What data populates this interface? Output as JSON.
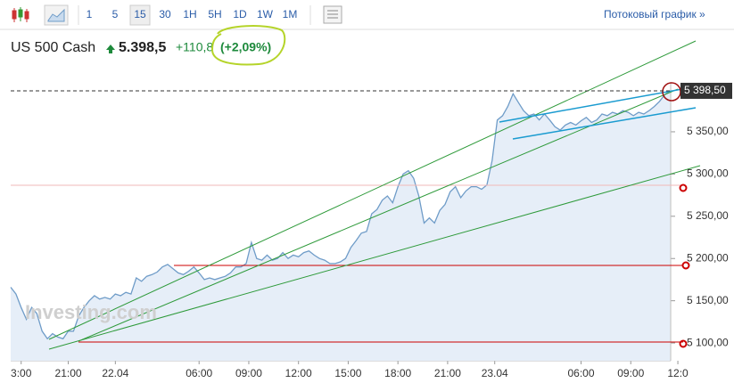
{
  "toolbar": {
    "intervals": [
      "1",
      "5",
      "15",
      "30",
      "1H",
      "5H",
      "1D",
      "1W",
      "1M"
    ],
    "selected": "15",
    "stream_link": "Потоковый график »"
  },
  "header": {
    "instrument": "US 500 Cash",
    "price": "5.398,5",
    "change": "+110,8",
    "change_pct": "(+2,09%)"
  },
  "chart_data": {
    "type": "area",
    "watermark": "Investing.com",
    "series": [
      {
        "color": "#6f9cc8",
        "values": [
          5166,
          5158,
          5142,
          5128,
          5142,
          5135,
          5114,
          5105,
          5111,
          5107,
          5105,
          5114,
          5114,
          5132,
          5142,
          5150,
          5156,
          5152,
          5154,
          5152,
          5158,
          5156,
          5160,
          5158,
          5177,
          5173,
          5179,
          5181,
          5184,
          5190,
          5193,
          5188,
          5183,
          5181,
          5185,
          5190,
          5183,
          5175,
          5177,
          5175,
          5177,
          5179,
          5183,
          5190,
          5190,
          5194,
          5219,
          5200,
          5198,
          5204,
          5198,
          5200,
          5207,
          5200,
          5204,
          5202,
          5207,
          5209,
          5204,
          5200,
          5198,
          5194,
          5194,
          5196,
          5200,
          5213,
          5221,
          5230,
          5232,
          5253,
          5258,
          5269,
          5274,
          5266,
          5285,
          5300,
          5304,
          5295,
          5274,
          5242,
          5248,
          5242,
          5257,
          5264,
          5279,
          5285,
          5272,
          5280,
          5285,
          5285,
          5282,
          5287,
          5316,
          5364,
          5369,
          5380,
          5395,
          5385,
          5375,
          5369,
          5371,
          5364,
          5371,
          5364,
          5356,
          5352,
          5358,
          5361,
          5358,
          5363,
          5367,
          5361,
          5364,
          5371,
          5369,
          5373,
          5371,
          5375,
          5373,
          5369,
          5373,
          5371,
          5375,
          5380,
          5386,
          5394,
          5398.5
        ]
      }
    ],
    "last_price": 5398.5,
    "last_price_label": "5 398,50",
    "xlim": [
      0,
      128
    ],
    "xticks": [
      {
        "value": 2,
        "label": "3:00"
      },
      {
        "value": 11,
        "label": "21:00"
      },
      {
        "value": 20,
        "label": "22.04"
      },
      {
        "value": 36,
        "label": "06:00"
      },
      {
        "value": 45.5,
        "label": "09:00"
      },
      {
        "value": 55,
        "label": "12:00"
      },
      {
        "value": 64.5,
        "label": "15:00"
      },
      {
        "value": 74,
        "label": "18:00"
      },
      {
        "value": 83.5,
        "label": "21:00"
      },
      {
        "value": 92.5,
        "label": "23.04"
      },
      {
        "value": 109,
        "label": "06:00"
      },
      {
        "value": 118.5,
        "label": "09:00"
      },
      {
        "value": 127.5,
        "label": "12:0"
      }
    ],
    "ylim": [
      5079,
      5409
    ],
    "yticks": [
      {
        "value": 5100,
        "label": "5 100,00"
      },
      {
        "value": 5150,
        "label": "5 150,00"
      },
      {
        "value": 5200,
        "label": "5 200,00"
      },
      {
        "value": 5250,
        "label": "5 250,00"
      },
      {
        "value": 5300,
        "label": "5 300,00"
      },
      {
        "value": 5350,
        "label": "5 350,00"
      }
    ]
  }
}
